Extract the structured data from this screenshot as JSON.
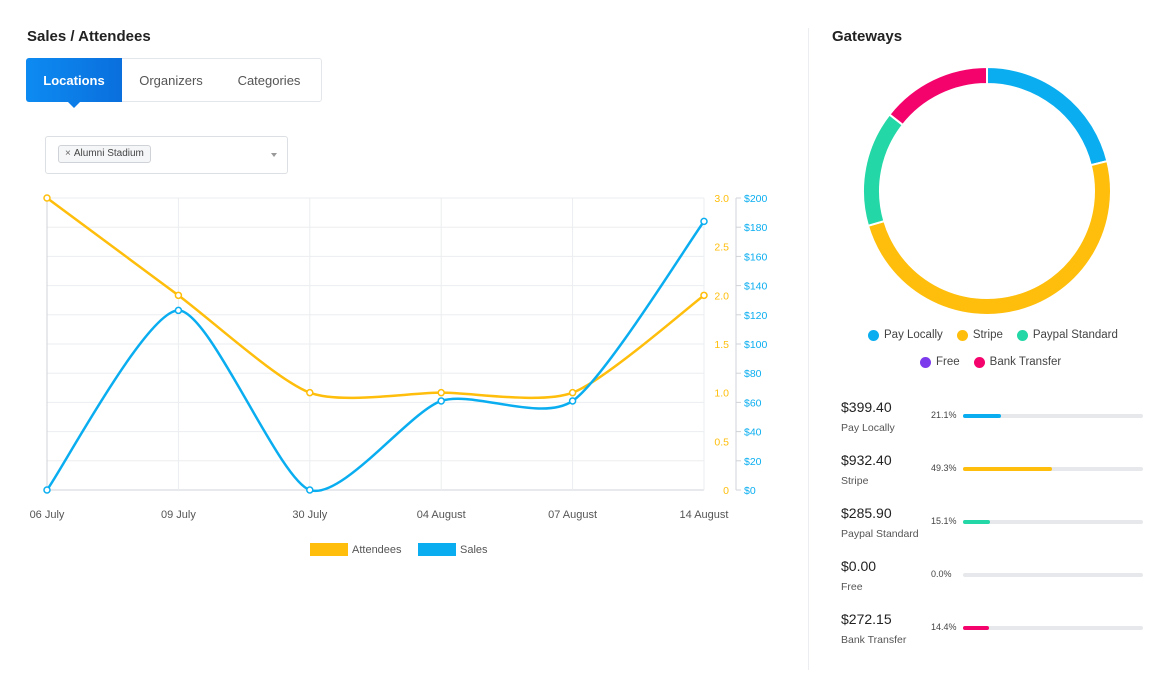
{
  "sales_title": "Sales / Attendees",
  "tabs": [
    {
      "label": "Locations",
      "active": true
    },
    {
      "label": "Organizers",
      "active": false
    },
    {
      "label": "Categories",
      "active": false
    }
  ],
  "location_filter": {
    "chip_remove": "×",
    "chip_label": "Alumni Stadium"
  },
  "chart_data": {
    "type": "line",
    "categories": [
      "06 July",
      "09 July",
      "30 July",
      "04 August",
      "07 August",
      "14 August"
    ],
    "series": [
      {
        "name": "Attendees",
        "axis": "left",
        "color": "#ffbe0b",
        "values": [
          3.0,
          2.0,
          1.0,
          1.0,
          1.0,
          2.0
        ]
      },
      {
        "name": "Sales",
        "axis": "right",
        "color": "#0aaef0",
        "values": [
          0,
          123,
          0,
          61,
          61,
          184
        ]
      }
    ],
    "y_left": {
      "ticks": [
        "0",
        "0.5",
        "1.0",
        "1.5",
        "2.0",
        "2.5",
        "3.0"
      ],
      "ylim": [
        0,
        3
      ],
      "color": "#ffbe0b"
    },
    "y_right": {
      "ticks": [
        "$0",
        "$20",
        "$40",
        "$60",
        "$80",
        "$100",
        "$120",
        "$140",
        "$160",
        "$180",
        "$200"
      ],
      "ylim": [
        0,
        200
      ],
      "color": "#0aaef0"
    },
    "grid": true,
    "legend_position": "bottom"
  },
  "gateways_title": "Gateways",
  "gateways_chart": {
    "type": "pie",
    "slices": [
      {
        "label": "Pay Locally",
        "value": 21.1,
        "color": "#0aaef0"
      },
      {
        "label": "Stripe",
        "value": 49.3,
        "color": "#ffbe0b"
      },
      {
        "label": "Paypal Standard",
        "value": 15.1,
        "color": "#23d7a6"
      },
      {
        "label": "Free",
        "value": 0.0,
        "color": "#7c3aed"
      },
      {
        "label": "Bank Transfer",
        "value": 14.4,
        "color": "#f5036c"
      }
    ]
  },
  "gateways": [
    {
      "amount": "$399.40",
      "name": "Pay Locally",
      "percent_label": "21.1%",
      "percent": 21.1,
      "color": "#0aaef0"
    },
    {
      "amount": "$932.40",
      "name": "Stripe",
      "percent_label": "49.3%",
      "percent": 49.3,
      "color": "#ffbe0b"
    },
    {
      "amount": "$285.90",
      "name": "Paypal Standard",
      "percent_label": "15.1%",
      "percent": 15.1,
      "color": "#23d7a6"
    },
    {
      "amount": "$0.00",
      "name": "Free",
      "percent_label": "0.0%",
      "percent": 0.0,
      "color": "#7c3aed"
    },
    {
      "amount": "$272.15",
      "name": "Bank Transfer",
      "percent_label": "14.4%",
      "percent": 14.4,
      "color": "#f5036c"
    }
  ]
}
